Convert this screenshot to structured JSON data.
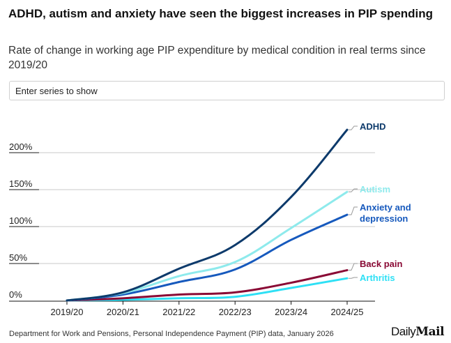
{
  "header": {
    "title": "ADHD, autism and anxiety have seen the biggest increases in PIP spending",
    "subtitle": "Rate of change in working age PIP expenditure by medical condition in real terms since 2019/20"
  },
  "controls": {
    "series_input_placeholder": "Enter series to show"
  },
  "footer": {
    "source": "Department for Work and Pensions, Personal Independence Payment (PIP) data, January 2026",
    "logo_daily": "Daily",
    "logo_mail": "Mail"
  },
  "chart_data": {
    "type": "line",
    "title": "ADHD, autism and anxiety have seen the biggest increases in PIP spending",
    "subtitle": "Rate of change in working age PIP expenditure by medical condition in real terms since 2019/20",
    "xlabel": "",
    "ylabel": "",
    "x": [
      "2019/20",
      "2020/21",
      "2021/22",
      "2022/23",
      "2023/24",
      "2024/25"
    ],
    "ylim": [
      0,
      240
    ],
    "yticks": [
      0,
      50,
      100,
      150,
      200
    ],
    "ytick_labels": [
      "0%",
      "50%",
      "100%",
      "150%",
      "200%"
    ],
    "grid": true,
    "legend": "direct-labels-right",
    "series": [
      {
        "name": "ADHD",
        "label": "ADHD",
        "color": "#0d3a6b",
        "values": [
          0,
          11,
          43,
          75,
          140,
          231
        ]
      },
      {
        "name": "Autism",
        "label": "Autism",
        "color": "#8eeaec",
        "values": [
          0,
          10,
          33,
          52,
          98,
          147
        ]
      },
      {
        "name": "Anxiety and depression",
        "label": "Anxiety and depression",
        "color": "#1659bd",
        "values": [
          0,
          8,
          25,
          42,
          82,
          116
        ]
      },
      {
        "name": "Back pain",
        "label": "Back pain",
        "color": "#8a0a35",
        "values": [
          0,
          3,
          8,
          11,
          24,
          41
        ]
      },
      {
        "name": "Arthritis",
        "label": "Arthritis",
        "color": "#2ee0f5",
        "values": [
          0,
          1,
          3,
          5,
          17,
          30
        ]
      }
    ]
  }
}
